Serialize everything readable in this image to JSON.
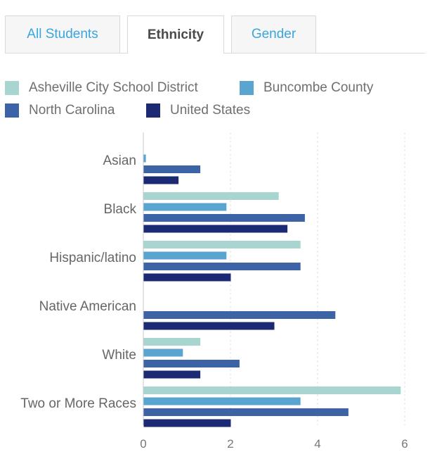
{
  "tabs": [
    {
      "label": "All Students",
      "active": false
    },
    {
      "label": "Ethnicity",
      "active": true
    },
    {
      "label": "Gender",
      "active": false
    }
  ],
  "chart_data": {
    "type": "bar",
    "orientation": "horizontal",
    "categories": [
      "Asian",
      "Black",
      "Hispanic/latino",
      "Native American",
      "White",
      "Two or More Races"
    ],
    "series": [
      {
        "name": "Asheville City School District",
        "color": "#a8d5cf",
        "values": [
          0,
          3.1,
          3.6,
          0,
          1.3,
          5.9
        ]
      },
      {
        "name": "Buncombe County",
        "color": "#5aa5cf",
        "values": [
          0.05,
          1.9,
          1.9,
          0,
          0.9,
          3.6
        ]
      },
      {
        "name": "North Carolina",
        "color": "#3b63a6",
        "values": [
          1.3,
          3.7,
          3.6,
          4.4,
          2.2,
          4.7
        ]
      },
      {
        "name": "United States",
        "color": "#1b2a72",
        "values": [
          0.8,
          3.3,
          2.0,
          3.0,
          1.3,
          2.0
        ]
      }
    ],
    "xlim": [
      0,
      6.4
    ],
    "xticks": [
      "0",
      "2",
      "4",
      "6"
    ],
    "xtick_values": [
      0,
      2,
      4,
      6
    ],
    "grid": "vertical-dashed",
    "legend": "top"
  }
}
